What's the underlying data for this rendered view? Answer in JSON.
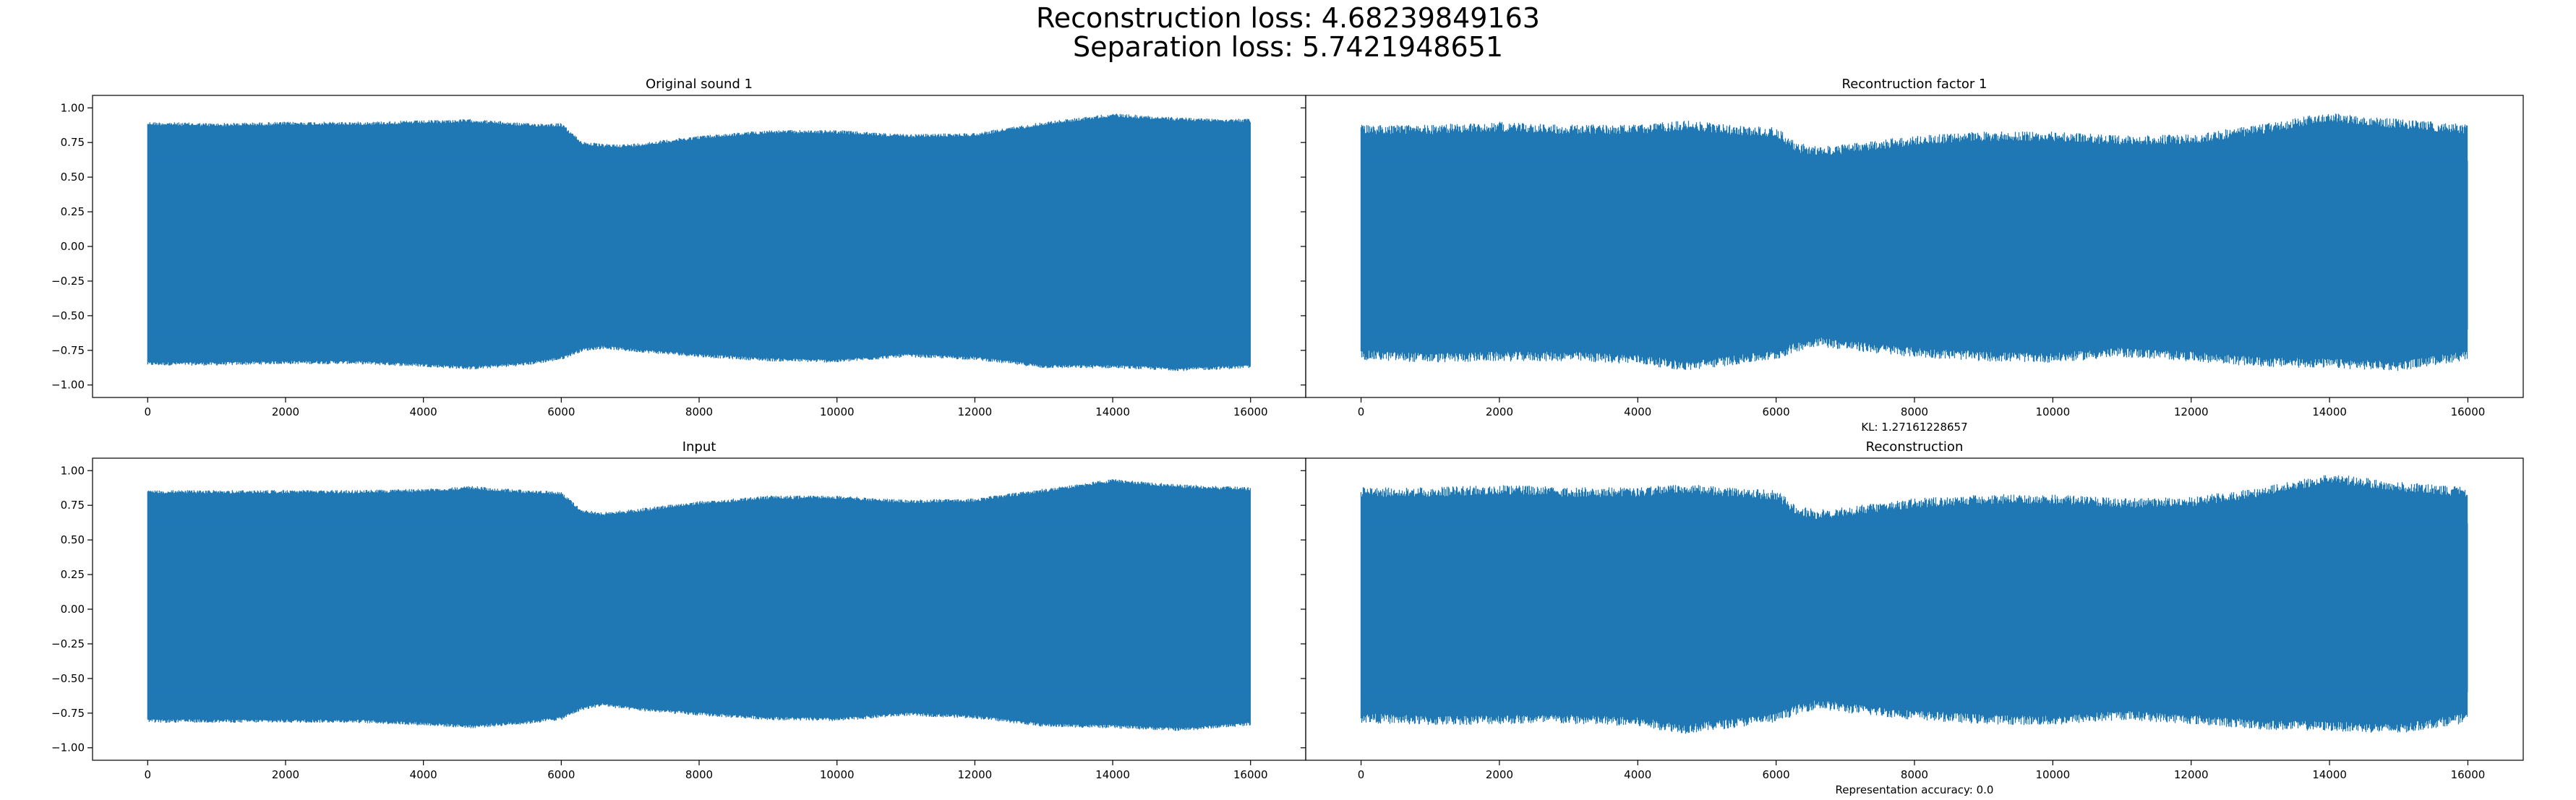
{
  "figure": {
    "title_line1": "Reconstruction loss: 4.68239849163",
    "title_line2": "Separation loss: 5.7421948651"
  },
  "chart_data": [
    {
      "type": "line",
      "title": "Original sound 1",
      "xlabel": "",
      "ylabel": "",
      "xlim": [
        -800,
        16800
      ],
      "ylim": [
        -1.09,
        1.09
      ],
      "xticks": [
        0,
        2000,
        4000,
        6000,
        8000,
        10000,
        12000,
        14000,
        16000
      ],
      "yticks": [
        1.0,
        0.75,
        0.5,
        0.25,
        0.0,
        -0.25,
        -0.5,
        -0.75,
        -1.0
      ],
      "ytick_labels": [
        "1.00",
        "0.75",
        "0.50",
        "0.25",
        "0.00",
        "−0.25",
        "−0.50",
        "−0.75",
        "−1.00"
      ],
      "grid": false,
      "series_color": "#1f77b4",
      "envelope": {
        "x": [
          0,
          1000,
          2000,
          3000,
          4000,
          4700,
          5500,
          6000,
          6300,
          6600,
          7000,
          8000,
          9000,
          10000,
          11000,
          12000,
          13000,
          14000,
          15000,
          16000
        ],
        "upper": [
          0.9,
          0.89,
          0.9,
          0.9,
          0.91,
          0.92,
          0.89,
          0.89,
          0.76,
          0.74,
          0.74,
          0.8,
          0.84,
          0.84,
          0.81,
          0.82,
          0.9,
          0.96,
          0.93,
          0.92
        ],
        "lower": [
          -0.86,
          -0.86,
          -0.85,
          -0.85,
          -0.87,
          -0.89,
          -0.86,
          -0.82,
          -0.76,
          -0.74,
          -0.76,
          -0.8,
          -0.83,
          -0.84,
          -0.8,
          -0.82,
          -0.88,
          -0.88,
          -0.9,
          -0.88
        ]
      }
    },
    {
      "type": "line",
      "title": "Recontruction factor 1",
      "xlabel": "KL: 1.27161228657",
      "ylabel": "",
      "xlim": [
        -800,
        16800
      ],
      "ylim": [
        -1.09,
        1.09
      ],
      "xticks": [
        0,
        2000,
        4000,
        6000,
        8000,
        10000,
        12000,
        14000,
        16000
      ],
      "yticks": [],
      "grid": false,
      "series_color": "#1f77b4",
      "envelope": {
        "x": [
          0,
          1000,
          2000,
          3000,
          4000,
          4700,
          5500,
          6000,
          6300,
          6600,
          7000,
          8000,
          9000,
          10000,
          11000,
          12000,
          13000,
          14000,
          15000,
          16000
        ],
        "upper": [
          0.88,
          0.88,
          0.9,
          0.88,
          0.88,
          0.91,
          0.87,
          0.86,
          0.75,
          0.72,
          0.74,
          0.8,
          0.83,
          0.83,
          0.8,
          0.81,
          0.88,
          0.97,
          0.92,
          0.88
        ],
        "lower": [
          -0.82,
          -0.84,
          -0.83,
          -0.83,
          -0.85,
          -0.9,
          -0.85,
          -0.82,
          -0.76,
          -0.72,
          -0.75,
          -0.8,
          -0.83,
          -0.84,
          -0.8,
          -0.83,
          -0.87,
          -0.88,
          -0.9,
          -0.82
        ]
      }
    },
    {
      "type": "line",
      "title": "Input",
      "xlabel": "",
      "ylabel": "",
      "xlim": [
        -800,
        16800
      ],
      "ylim": [
        -1.09,
        1.09
      ],
      "xticks": [
        0,
        2000,
        4000,
        6000,
        8000,
        10000,
        12000,
        14000,
        16000
      ],
      "yticks": [
        1.0,
        0.75,
        0.5,
        0.25,
        0.0,
        -0.25,
        -0.5,
        -0.75,
        -1.0
      ],
      "ytick_labels": [
        "1.00",
        "0.75",
        "0.50",
        "0.25",
        "0.00",
        "−0.25",
        "−0.50",
        "−0.75",
        "−1.00"
      ],
      "grid": false,
      "series_color": "#1f77b4",
      "envelope": {
        "x": [
          0,
          1000,
          2000,
          3000,
          4000,
          4700,
          5500,
          6000,
          6300,
          6600,
          7000,
          8000,
          9000,
          10000,
          11000,
          12000,
          13000,
          14000,
          15000,
          16000
        ],
        "upper": [
          0.86,
          0.86,
          0.86,
          0.86,
          0.87,
          0.89,
          0.86,
          0.85,
          0.72,
          0.7,
          0.72,
          0.78,
          0.82,
          0.82,
          0.79,
          0.8,
          0.87,
          0.94,
          0.9,
          0.88
        ],
        "lower": [
          -0.82,
          -0.82,
          -0.82,
          -0.82,
          -0.84,
          -0.86,
          -0.83,
          -0.8,
          -0.73,
          -0.7,
          -0.73,
          -0.77,
          -0.8,
          -0.81,
          -0.77,
          -0.79,
          -0.85,
          -0.86,
          -0.88,
          -0.84
        ]
      }
    },
    {
      "type": "line",
      "title": "Reconstruction",
      "xlabel": "Representation accuracy: 0.0",
      "ylabel": "",
      "xlim": [
        -800,
        16800
      ],
      "ylim": [
        -1.09,
        1.09
      ],
      "xticks": [
        0,
        2000,
        4000,
        6000,
        8000,
        10000,
        12000,
        14000,
        16000
      ],
      "yticks": [],
      "grid": false,
      "series_color": "#1f77b4",
      "envelope": {
        "x": [
          0,
          1000,
          2000,
          3000,
          4000,
          4700,
          5500,
          6000,
          6300,
          6600,
          7000,
          8000,
          9000,
          10000,
          11000,
          12000,
          13000,
          14000,
          15000,
          16000
        ],
        "upper": [
          0.88,
          0.88,
          0.9,
          0.88,
          0.88,
          0.91,
          0.87,
          0.86,
          0.75,
          0.72,
          0.74,
          0.8,
          0.83,
          0.83,
          0.8,
          0.81,
          0.88,
          0.98,
          0.92,
          0.88
        ],
        "lower": [
          -0.82,
          -0.84,
          -0.83,
          -0.83,
          -0.85,
          -0.9,
          -0.85,
          -0.82,
          -0.76,
          -0.72,
          -0.75,
          -0.8,
          -0.83,
          -0.84,
          -0.8,
          -0.83,
          -0.87,
          -0.88,
          -0.9,
          -0.82
        ]
      }
    }
  ]
}
